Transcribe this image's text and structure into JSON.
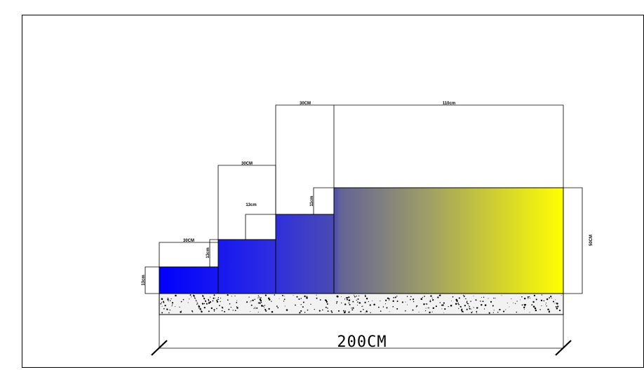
{
  "drawing": {
    "colors": {
      "background": "#ffffff",
      "outline": "#000000",
      "fill_start": "#0000ff",
      "fill_end": "#ffff00",
      "foundation_fill": "#f2f2f2"
    },
    "labels": {
      "step1_height": "13cm",
      "step1_width": "30CM",
      "step2_height": "13cm",
      "step2_width": "30CM",
      "step3_height": "13cm",
      "step3_width": "30CM",
      "step4_height": "11cm",
      "top_width": "110cm",
      "total_height": "50CM",
      "total_width": "200CM"
    }
  }
}
